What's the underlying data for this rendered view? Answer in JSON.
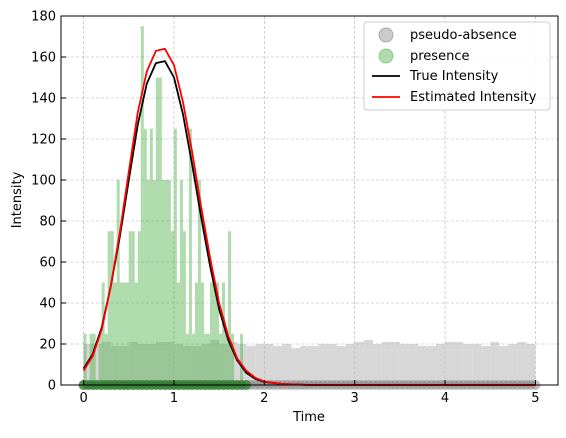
{
  "chart_data": {
    "type": "histogram",
    "xlabel": "Time",
    "ylabel": "Intensity",
    "xlim": [
      -0.25,
      5.25
    ],
    "ylim": [
      0,
      180
    ],
    "xticks": [
      0,
      1,
      2,
      3,
      4,
      5
    ],
    "yticks": [
      0,
      20,
      40,
      60,
      80,
      100,
      120,
      140,
      160,
      180
    ],
    "grid": true,
    "legend_position": "top-right",
    "legend": [
      "pseudo-absence",
      "presence",
      "True Intensity",
      "Estimated Intensity"
    ],
    "colors": {
      "pseudo_absence": "#a9a9a9",
      "presence": "#4daf4a",
      "true_intensity": "#000000",
      "estimated_intensity": "#ff0000"
    },
    "pseudo_absence_hist": {
      "bin_width": 0.1,
      "start": 0.0,
      "values": [
        20,
        20,
        21,
        19,
        19,
        21,
        20,
        20,
        21,
        21,
        20,
        19,
        19,
        20,
        22,
        20,
        21,
        20,
        19,
        20,
        20,
        19,
        20,
        18,
        19,
        19,
        20,
        20,
        19,
        20,
        21,
        22,
        20,
        21,
        21,
        20,
        20,
        19,
        19,
        20,
        21,
        21,
        20,
        20,
        19,
        21,
        19,
        20,
        21,
        20
      ]
    },
    "presence_hist": {
      "bin_width": 0.0333,
      "start": 0.0,
      "values": [
        25,
        0,
        25,
        25,
        0,
        25,
        50,
        25,
        75,
        75,
        50,
        100,
        50,
        50,
        50,
        75,
        75,
        50,
        75,
        175,
        125,
        100,
        125,
        100,
        150,
        150,
        100,
        100,
        100,
        75,
        125,
        50,
        100,
        75,
        25,
        125,
        25,
        50,
        100,
        50,
        25,
        25,
        50,
        50,
        50,
        25,
        50,
        25,
        75,
        25,
        0,
        0,
        25,
        0,
        0
      ]
    },
    "series": [
      {
        "name": "True Intensity",
        "x": [
          0.0,
          0.1,
          0.2,
          0.3,
          0.4,
          0.5,
          0.6,
          0.7,
          0.8,
          0.9,
          1.0,
          1.1,
          1.2,
          1.3,
          1.4,
          1.5,
          1.6,
          1.7,
          1.8,
          1.9,
          2.0,
          2.2,
          2.5,
          3.0,
          3.5,
          4.0,
          4.5,
          5.0
        ],
        "y": [
          8,
          15,
          28,
          48,
          72,
          100,
          127,
          147,
          157,
          158,
          150,
          132,
          108,
          82,
          58,
          37,
          22,
          12,
          6,
          3,
          1.5,
          0.5,
          0,
          0,
          0,
          0,
          0,
          0
        ]
      },
      {
        "name": "Estimated Intensity",
        "x": [
          0.0,
          0.1,
          0.2,
          0.3,
          0.4,
          0.5,
          0.6,
          0.7,
          0.8,
          0.9,
          1.0,
          1.1,
          1.2,
          1.3,
          1.4,
          1.5,
          1.6,
          1.7,
          1.8,
          1.9,
          2.0,
          2.2,
          2.5,
          3.0,
          3.5,
          4.0,
          4.5,
          5.0
        ],
        "y": [
          7,
          14,
          27,
          48,
          74,
          104,
          133,
          153,
          163,
          164,
          156,
          138,
          114,
          87,
          62,
          40,
          24,
          13,
          7,
          3.5,
          1.7,
          0.5,
          0,
          0,
          0,
          0,
          0,
          0
        ]
      }
    ]
  }
}
